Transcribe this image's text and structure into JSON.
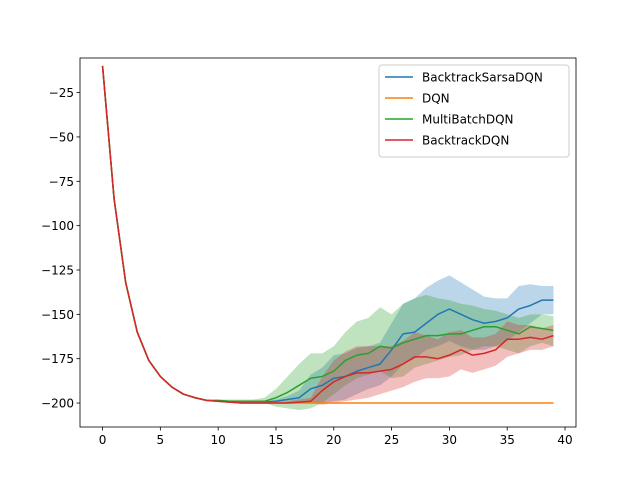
{
  "chart_data": {
    "type": "line",
    "title": "",
    "xlabel": "",
    "ylabel": "",
    "xlim": [
      -1.95,
      40.95
    ],
    "ylim": [
      -213.5,
      -5.5
    ],
    "xticks": [
      0,
      5,
      10,
      15,
      20,
      25,
      30,
      35,
      40
    ],
    "yticks": [
      -200,
      -175,
      -150,
      -125,
      -100,
      -75,
      -50,
      -25
    ],
    "grid": false,
    "legend_placement": "top-right",
    "x": [
      0,
      1,
      2,
      3,
      4,
      5,
      6,
      7,
      8,
      9,
      10,
      11,
      12,
      13,
      14,
      15,
      16,
      17,
      18,
      19,
      20,
      21,
      22,
      23,
      24,
      25,
      26,
      27,
      28,
      29,
      30,
      31,
      32,
      33,
      34,
      35,
      36,
      37,
      38,
      39
    ],
    "series": [
      {
        "name": "BacktrackSarsaDQN",
        "color": "#1f77b4",
        "values": [
          -10,
          -85,
          -132,
          -160,
          -176,
          -185,
          -191,
          -195,
          -197,
          -198.5,
          -199,
          -199.5,
          -199.5,
          -199.5,
          -199.5,
          -199,
          -198,
          -197,
          -192,
          -190,
          -186,
          -185,
          -182,
          -180,
          -178,
          -170,
          -161,
          -160,
          -155,
          -150,
          -147,
          -150,
          -153,
          -155,
          -154,
          -152,
          -147,
          -145,
          -142,
          -142
        ],
        "lower": [
          -10,
          -85,
          -132,
          -160,
          -176,
          -185,
          -191,
          -195,
          -197,
          -198.5,
          -199,
          -199.5,
          -200,
          -200,
          -200,
          -200,
          -200,
          -200,
          -200,
          -200,
          -199,
          -198,
          -195,
          -192,
          -190,
          -185,
          -178,
          -175,
          -170,
          -168,
          -165,
          -168,
          -170,
          -170,
          -168,
          -165,
          -160,
          -155,
          -150,
          -150
        ],
        "upper": [
          -10,
          -85,
          -132,
          -160,
          -176,
          -185,
          -191,
          -195,
          -197,
          -198.5,
          -199,
          -199,
          -199,
          -199,
          -199,
          -198,
          -196,
          -193,
          -184,
          -180,
          -173,
          -172,
          -169,
          -168,
          -166,
          -155,
          -144,
          -141,
          -135,
          -131,
          -128,
          -132,
          -136,
          -140,
          -141,
          -141,
          -134,
          -133,
          -134,
          -134
        ]
      },
      {
        "name": "DQN",
        "color": "#ff7f0e",
        "values": [
          -10,
          -85,
          -132,
          -160,
          -176,
          -185,
          -191,
          -195,
          -197,
          -198.5,
          -199,
          -199.5,
          -200,
          -200,
          -200,
          -200,
          -200,
          -200,
          -200,
          -200,
          -200,
          -200,
          -200,
          -200,
          -200,
          -200,
          -200,
          -200,
          -200,
          -200,
          -200,
          -200,
          -200,
          -200,
          -200,
          -200,
          -200,
          -200,
          -200,
          -200
        ],
        "lower": [
          -10,
          -85,
          -132,
          -160,
          -176,
          -185,
          -191,
          -195,
          -197,
          -198.5,
          -199,
          -199.5,
          -200,
          -200,
          -200,
          -200,
          -200,
          -200,
          -200,
          -200,
          -200,
          -200,
          -200,
          -200,
          -200,
          -200,
          -200,
          -200,
          -200,
          -200,
          -200,
          -200,
          -200,
          -200,
          -200,
          -200,
          -200,
          -200,
          -200,
          -200
        ],
        "upper": [
          -10,
          -85,
          -132,
          -160,
          -176,
          -185,
          -191,
          -195,
          -197,
          -198.5,
          -199,
          -199.5,
          -200,
          -200,
          -200,
          -200,
          -200,
          -200,
          -200,
          -200,
          -200,
          -200,
          -200,
          -200,
          -200,
          -200,
          -200,
          -200,
          -200,
          -200,
          -200,
          -200,
          -200,
          -200,
          -200,
          -200,
          -200,
          -200,
          -200,
          -200
        ]
      },
      {
        "name": "MultiBatchDQN",
        "color": "#2ca02c",
        "values": [
          -10,
          -85,
          -132,
          -160,
          -176,
          -185,
          -191,
          -195,
          -197,
          -198.5,
          -198.5,
          -199,
          -199,
          -199,
          -199,
          -197,
          -194,
          -190,
          -186,
          -185,
          -182,
          -176,
          -173,
          -172,
          -168,
          -169,
          -166,
          -164,
          -162,
          -162,
          -161,
          -161,
          -159,
          -157,
          -157,
          -159,
          -161,
          -157,
          -158,
          -159
        ],
        "lower": [
          -10,
          -85,
          -132,
          -160,
          -176,
          -185,
          -191,
          -195,
          -197,
          -198.5,
          -199,
          -199.5,
          -200,
          -200,
          -200,
          -202,
          -203,
          -204,
          -203,
          -200,
          -195,
          -190,
          -186,
          -184,
          -182,
          -186,
          -185,
          -180,
          -178,
          -176,
          -174,
          -173,
          -170,
          -168,
          -168,
          -170,
          -172,
          -168,
          -166,
          -168
        ],
        "upper": [
          -10,
          -85,
          -132,
          -160,
          -176,
          -185,
          -191,
          -195,
          -197,
          -198.5,
          -198,
          -198,
          -198,
          -198,
          -197,
          -192,
          -185,
          -178,
          -172,
          -172,
          -168,
          -160,
          -154,
          -152,
          -146,
          -150,
          -144,
          -141,
          -139,
          -141,
          -142,
          -144,
          -145,
          -147,
          -148,
          -150,
          -152,
          -150,
          -150,
          -151
        ]
      },
      {
        "name": "BacktrackDQN",
        "color": "#d62728",
        "values": [
          -10,
          -85,
          -132,
          -160,
          -176,
          -185,
          -191,
          -195,
          -197,
          -198.5,
          -199,
          -199.5,
          -200,
          -200,
          -200,
          -200,
          -200,
          -199.5,
          -199,
          -193,
          -188,
          -185,
          -183,
          -183,
          -182,
          -181,
          -178,
          -174,
          -174,
          -175,
          -173,
          -170,
          -173,
          -172,
          -170,
          -164,
          -164,
          -163,
          -164,
          -162
        ],
        "lower": [
          -10,
          -85,
          -132,
          -160,
          -176,
          -185,
          -191,
          -195,
          -197,
          -198.5,
          -199,
          -199.5,
          -200,
          -200,
          -200,
          -200,
          -200,
          -200,
          -200,
          -201,
          -200,
          -199,
          -198,
          -197,
          -195,
          -193,
          -191,
          -188,
          -186,
          -186,
          -185,
          -181,
          -183,
          -181,
          -179,
          -174,
          -172,
          -170,
          -170,
          -168
        ],
        "upper": [
          -10,
          -85,
          -132,
          -160,
          -176,
          -185,
          -191,
          -195,
          -197,
          -198.5,
          -199,
          -199.5,
          -200,
          -200,
          -200,
          -200,
          -199,
          -198,
          -197,
          -185,
          -176,
          -171,
          -168,
          -168,
          -168,
          -168,
          -165,
          -160,
          -162,
          -164,
          -160,
          -159,
          -163,
          -163,
          -161,
          -154,
          -156,
          -156,
          -158,
          -156
        ]
      }
    ]
  }
}
